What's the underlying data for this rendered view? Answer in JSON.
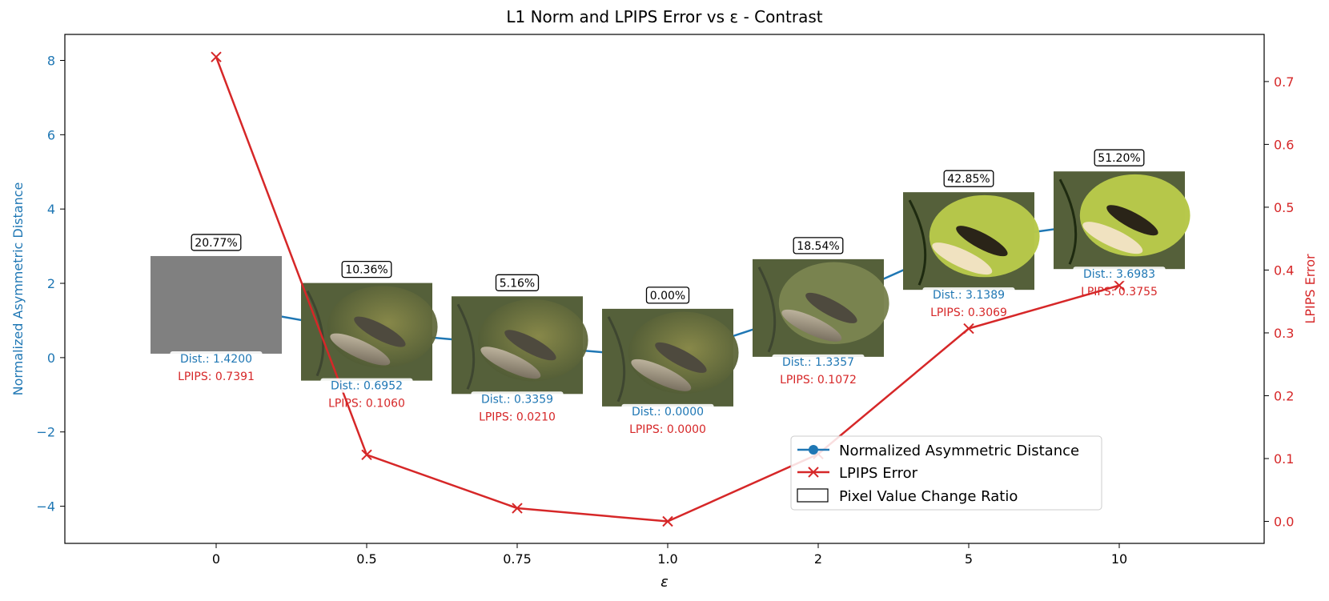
{
  "chart_data": {
    "type": "line",
    "title": "L1 Norm and LPIPS Error vs ε - Contrast",
    "xlabel": "ε",
    "ylabel_left": "Normalized Asymmetric Distance",
    "ylabel_right": "LPIPS Error",
    "categories": [
      "0",
      "0.5",
      "0.75",
      "1.0",
      "2",
      "5",
      "10"
    ],
    "ylim_left": [
      -5,
      8.7
    ],
    "ylim_right": [
      -0.035,
      0.775
    ],
    "yticks_left": [
      "−4",
      "−2",
      "0",
      "2",
      "4",
      "6",
      "8"
    ],
    "yticks_right": [
      "0.0",
      "0.1",
      "0.2",
      "0.3",
      "0.4",
      "0.5",
      "0.6",
      "0.7"
    ],
    "series": [
      {
        "name": "Normalized Asymmetric Distance",
        "axis": "left",
        "color": "#1f77b4",
        "marker": "circle",
        "values": [
          1.42,
          0.6952,
          0.3359,
          0.0,
          1.3357,
          3.1389,
          3.6983
        ]
      },
      {
        "name": "LPIPS Error",
        "axis": "right",
        "color": "#d62728",
        "marker": "x",
        "values": [
          0.7391,
          0.106,
          0.021,
          0.0,
          0.1072,
          0.3069,
          0.3755
        ]
      }
    ],
    "pixel_change_ratio": [
      "20.77%",
      "10.36%",
      "5.16%",
      "0.00%",
      "18.54%",
      "42.85%",
      "51.20%"
    ],
    "dist_labels": [
      "Dist.: 1.4200",
      "Dist.: 0.6952",
      "Dist.: 0.3359",
      "Dist.: 0.0000",
      "Dist.: 1.3357",
      "Dist.: 3.1389",
      "Dist.: 3.6983"
    ],
    "lpips_labels": [
      "LPIPS: 0.7391",
      "LPIPS: 0.1060",
      "LPIPS: 0.0210",
      "LPIPS: 0.0000",
      "LPIPS: 0.1072",
      "LPIPS: 0.3069",
      "LPIPS: 0.3755"
    ],
    "legend": {
      "placement": "lower-right",
      "entries": [
        "Normalized Asymmetric Distance",
        "LPIPS Error",
        "Pixel Value Change Ratio"
      ]
    }
  }
}
